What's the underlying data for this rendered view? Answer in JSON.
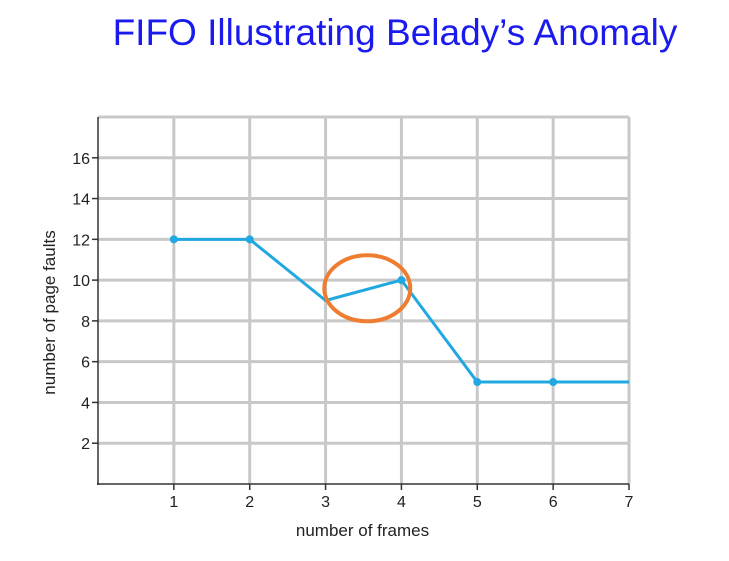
{
  "title": "FIFO Illustrating Belady’s Anomaly",
  "colors": {
    "title": "#1a1aee",
    "grid": "#c8c8c8",
    "axis": "#333333",
    "series": "#21a8e0",
    "highlight_circle": "#ee7d31"
  },
  "chart_data": {
    "type": "line",
    "title": "",
    "xlabel": "number of frames",
    "ylabel": "number of page faults",
    "xlim": [
      0,
      7
    ],
    "ylim": [
      0,
      18
    ],
    "x_ticks": [
      1,
      2,
      3,
      4,
      5,
      6,
      7
    ],
    "y_ticks": [
      2,
      4,
      6,
      8,
      10,
      12,
      14,
      16
    ],
    "grid": true,
    "series": [
      {
        "x": [
          1,
          2,
          3,
          4,
          5,
          6,
          7
        ],
        "y": [
          12,
          12,
          9,
          10,
          5,
          5,
          5
        ],
        "markers_at_x": [
          1,
          2,
          4,
          5,
          6
        ]
      }
    ],
    "annotations": [
      {
        "type": "circle",
        "description": "highlights increase in faults from 3 to 4 frames",
        "center_x": 3.55,
        "center_y": 9.6
      }
    ]
  }
}
